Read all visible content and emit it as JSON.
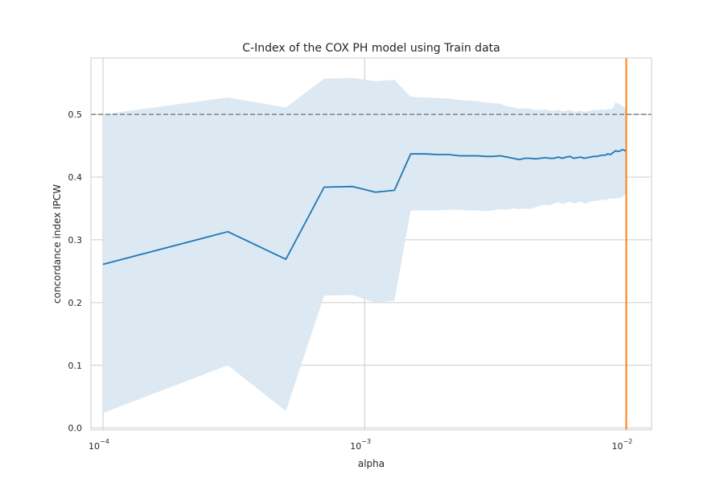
{
  "chart_data": {
    "type": "line",
    "title": "C-Index of the COX PH model using Train data",
    "xlabel": "alpha",
    "ylabel": "concordance index IPCW",
    "x_scale": "log",
    "xlim": [
      8.99e-05,
      0.0125
    ],
    "ylim": [
      -0.003,
      0.59
    ],
    "x_ticks": [
      {
        "value": 0.0001,
        "base": "10",
        "exp": "−4"
      },
      {
        "value": 0.001,
        "base": "10",
        "exp": "−3"
      },
      {
        "value": 0.01,
        "base": "10",
        "exp": "−2"
      }
    ],
    "y_ticks": [
      {
        "value": 0.0,
        "label": "0.0"
      },
      {
        "value": 0.1,
        "label": "0.1"
      },
      {
        "value": 0.2,
        "label": "0.2"
      },
      {
        "value": 0.3,
        "label": "0.3"
      },
      {
        "value": 0.4,
        "label": "0.4"
      },
      {
        "value": 0.5,
        "label": "0.5"
      }
    ],
    "grid": true,
    "series": [
      {
        "color": "#1f77b4",
        "band_color": "#dce8f2",
        "x": [
          0.0001,
          0.0003,
          0.0005,
          0.0007,
          0.0009,
          0.0011,
          0.0013,
          0.0015,
          0.0017,
          0.0019,
          0.0021,
          0.0023,
          0.0025,
          0.0027,
          0.0029,
          0.0031,
          0.0033,
          0.0035,
          0.0037,
          0.0039,
          0.0041,
          0.0043,
          0.0045,
          0.0047,
          0.0049,
          0.0051,
          0.0053,
          0.0055,
          0.0057,
          0.0059,
          0.0061,
          0.0063,
          0.0065,
          0.0067,
          0.0069,
          0.0071,
          0.0073,
          0.0075,
          0.0077,
          0.0079,
          0.0081,
          0.0083,
          0.0085,
          0.0087,
          0.0089,
          0.0091,
          0.0093,
          0.0095,
          0.0097,
          0.0099,
          0.01
        ],
        "y": [
          0.261,
          0.313,
          0.269,
          0.384,
          0.385,
          0.376,
          0.379,
          0.437,
          0.437,
          0.436,
          0.436,
          0.434,
          0.434,
          0.434,
          0.433,
          0.433,
          0.434,
          0.432,
          0.43,
          0.428,
          0.43,
          0.43,
          0.429,
          0.43,
          0.431,
          0.43,
          0.43,
          0.432,
          0.43,
          0.432,
          0.433,
          0.43,
          0.431,
          0.432,
          0.43,
          0.431,
          0.432,
          0.433,
          0.433,
          0.434,
          0.435,
          0.435,
          0.437,
          0.436,
          0.439,
          0.442,
          0.441,
          0.442,
          0.444,
          0.442,
          0.443
        ],
        "lower": [
          0.024,
          0.1,
          0.027,
          0.211,
          0.212,
          0.2,
          0.203,
          0.347,
          0.347,
          0.347,
          0.348,
          0.348,
          0.347,
          0.347,
          0.346,
          0.347,
          0.349,
          0.348,
          0.35,
          0.349,
          0.35,
          0.349,
          0.352,
          0.355,
          0.356,
          0.355,
          0.358,
          0.36,
          0.357,
          0.359,
          0.361,
          0.358,
          0.36,
          0.361,
          0.358,
          0.359,
          0.361,
          0.362,
          0.362,
          0.363,
          0.364,
          0.363,
          0.365,
          0.366,
          0.366,
          0.366,
          0.367,
          0.367,
          0.369,
          0.372,
          0.372
        ],
        "upper": [
          0.5,
          0.527,
          0.511,
          0.557,
          0.558,
          0.553,
          0.555,
          0.528,
          0.527,
          0.526,
          0.525,
          0.523,
          0.522,
          0.521,
          0.519,
          0.518,
          0.517,
          0.513,
          0.511,
          0.509,
          0.51,
          0.509,
          0.507,
          0.507,
          0.508,
          0.506,
          0.506,
          0.507,
          0.505,
          0.506,
          0.507,
          0.504,
          0.505,
          0.506,
          0.504,
          0.505,
          0.506,
          0.507,
          0.507,
          0.507,
          0.508,
          0.507,
          0.509,
          0.508,
          0.51,
          0.519,
          0.517,
          0.515,
          0.513,
          0.511,
          0.51
        ]
      }
    ],
    "reference_line": {
      "y": 0.5,
      "color": "#808080",
      "style": "dashed"
    },
    "vertical_line": {
      "x": 0.01,
      "color": "#ff7f0e"
    }
  }
}
